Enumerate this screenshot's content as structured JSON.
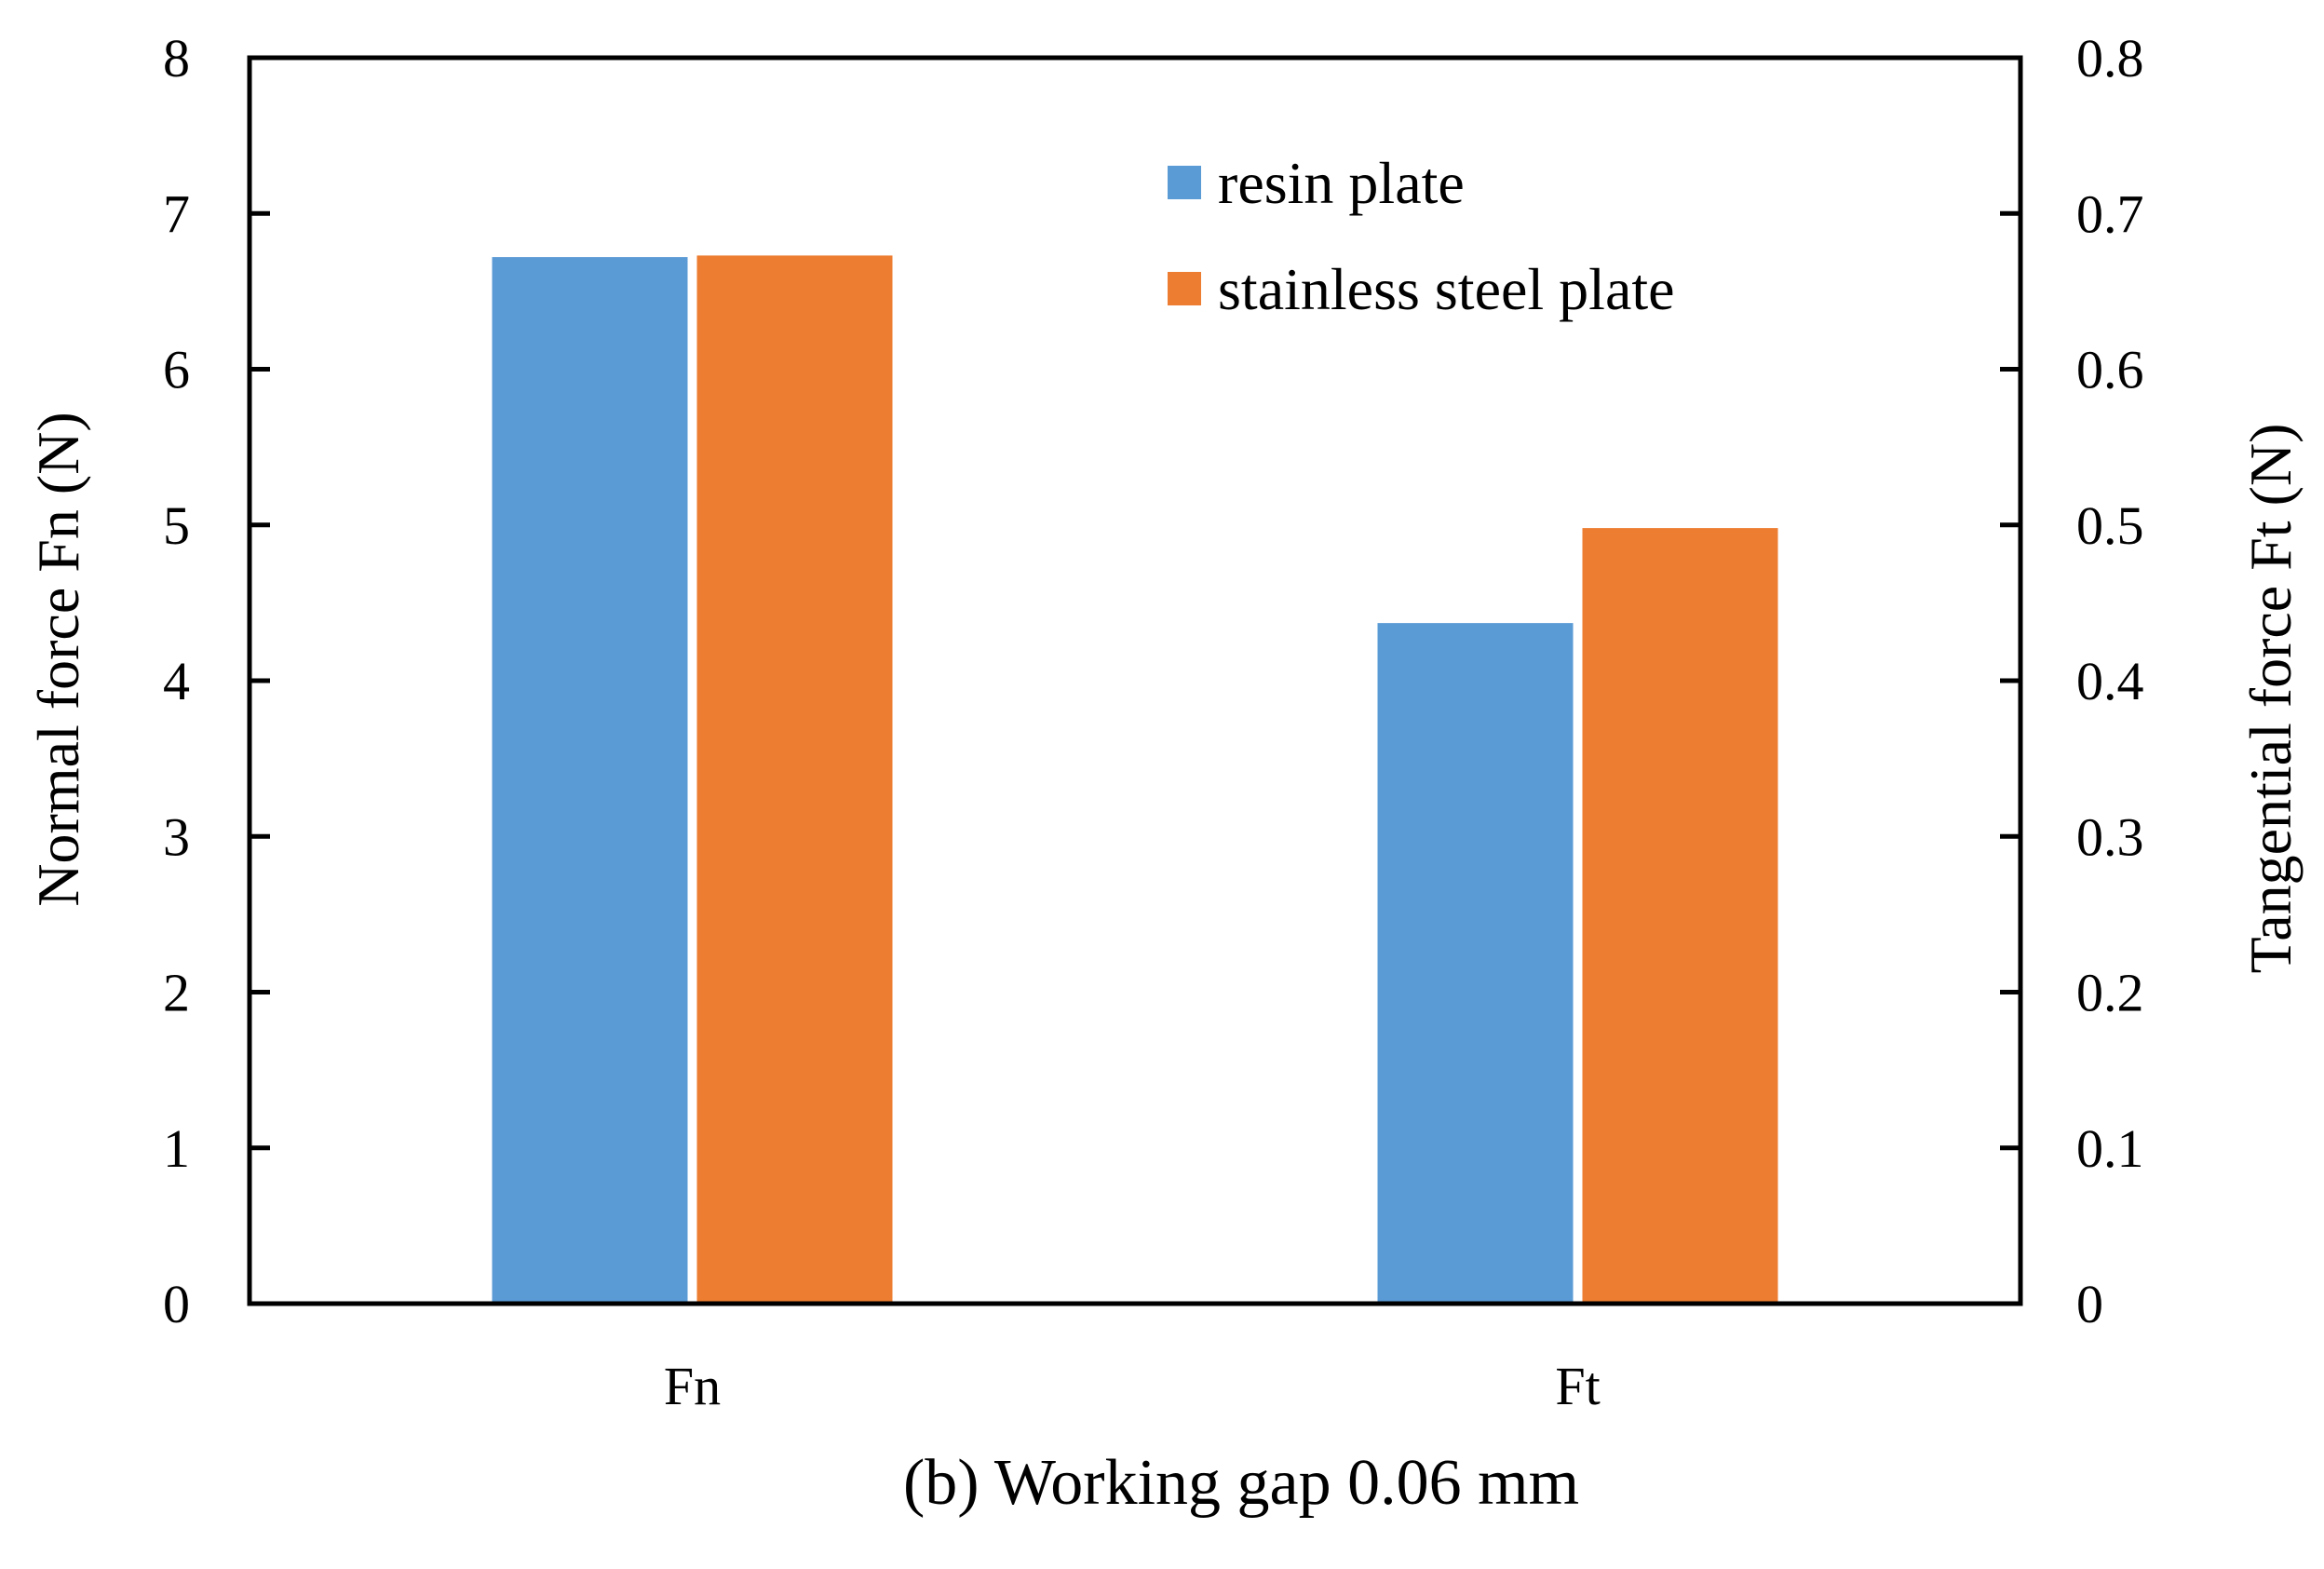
{
  "chart_data": {
    "type": "bar",
    "categories": [
      "Fn",
      "Ft"
    ],
    "series": [
      {
        "name": "resin plate",
        "color": "#5B9BD5",
        "values": [
          6.72,
          0.437
        ]
      },
      {
        "name": "stainless steel plate",
        "color": "#ED7D31",
        "values": [
          6.73,
          0.498
        ]
      }
    ],
    "left_axis": {
      "label": "Normal force Fn (N)",
      "ylim": [
        0,
        8
      ],
      "ticks": [
        "0",
        "1",
        "2",
        "3",
        "4",
        "5",
        "6",
        "7",
        "8"
      ]
    },
    "right_axis": {
      "label": "Tangential force Ft (N)",
      "ylim": [
        0,
        0.8
      ],
      "ticks": [
        "0",
        "0.1",
        "0.2",
        "0.3",
        "0.4",
        "0.5",
        "0.6",
        "0.7",
        "0.8"
      ]
    },
    "category_axis": {
      "Fn": "left",
      "Ft": "right"
    },
    "caption": "(b) Working gap 0.06 mm",
    "legend_position": "top-right",
    "grid": false
  }
}
